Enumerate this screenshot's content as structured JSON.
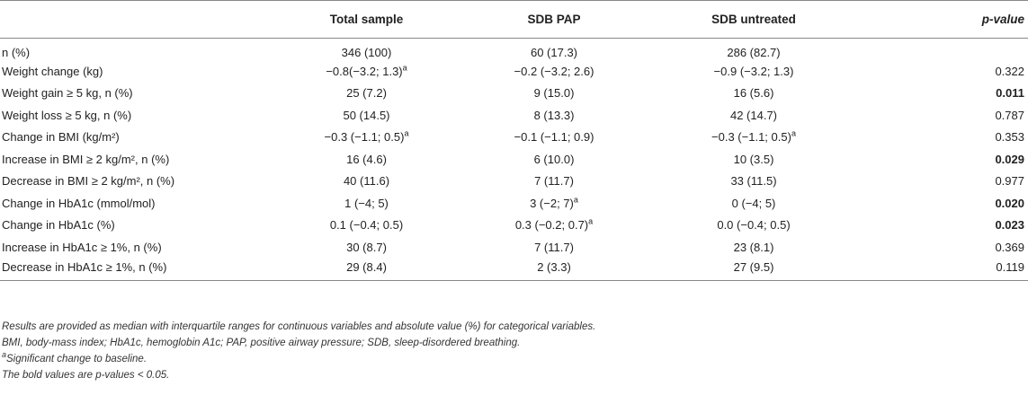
{
  "headers": [
    "",
    "Total sample",
    "SDB PAP",
    "SDB untreated",
    "p-value"
  ],
  "rows": [
    {
      "label": "n (%)",
      "total": "346 (100)",
      "pap": "60 (17.3)",
      "untreated": "286 (82.7)",
      "p": "",
      "p_bold": false
    },
    {
      "label": "Weight change (kg)",
      "total": "−0.8(−3.2; 1.3)",
      "total_sup": "a",
      "pap": "−0.2 (−3.2; 2.6)",
      "untreated": "−0.9 (−3.2; 1.3)",
      "p": "0.322",
      "p_bold": false
    },
    {
      "label": "Weight gain ≥ 5 kg, n (%)",
      "total": "25 (7.2)",
      "pap": "9 (15.0)",
      "untreated": "16 (5.6)",
      "p": "0.011",
      "p_bold": true
    },
    {
      "label": "Weight loss ≥ 5 kg, n (%)",
      "total": "50 (14.5)",
      "pap": "8 (13.3)",
      "untreated": "42 (14.7)",
      "p": "0.787",
      "p_bold": false
    },
    {
      "label": "Change in BMI (kg/m²)",
      "total": "−0.3 (−1.1; 0.5)",
      "total_sup": "a",
      "pap": "−0.1 (−1.1; 0.9)",
      "untreated": "−0.3 (−1.1; 0.5)",
      "untreated_sup": "a",
      "p": "0.353",
      "p_bold": false
    },
    {
      "label": "Increase in BMI ≥ 2 kg/m², n (%)",
      "total": "16 (4.6)",
      "pap": "6 (10.0)",
      "untreated": "10 (3.5)",
      "p": "0.029",
      "p_bold": true
    },
    {
      "label": "Decrease in BMI ≥ 2 kg/m², n (%)",
      "total": "40 (11.6)",
      "pap": "7 (11.7)",
      "untreated": "33 (11.5)",
      "p": "0.977",
      "p_bold": false
    },
    {
      "label": "Change in HbA1c (mmol/mol)",
      "total": "1 (−4; 5)",
      "pap": "3 (−2; 7)",
      "pap_sup": "a",
      "untreated": "0 (−4; 5)",
      "p": "0.020",
      "p_bold": true
    },
    {
      "label": "Change in HbA1c (%)",
      "total": "0.1 (−0.4; 0.5)",
      "pap": "0.3 (−0.2; 0.7)",
      "pap_sup": "a",
      "untreated": "0.0 (−0.4; 0.5)",
      "p": "0.023",
      "p_bold": true
    },
    {
      "label": "Increase in HbA1c ≥ 1%, n (%)",
      "total": "30 (8.7)",
      "pap": "7 (11.7)",
      "untreated": "23 (8.1)",
      "p": "0.369",
      "p_bold": false
    },
    {
      "label": "Decrease in HbA1c ≥ 1%, n (%)",
      "total": "29 (8.4)",
      "pap": "2 (3.3)",
      "untreated": "27 (9.5)",
      "p": "0.119",
      "p_bold": false
    }
  ],
  "notes": {
    "line1": "Results are provided as median with interquartile ranges for continuous variables and absolute value (%) for categorical variables.",
    "line2": "BMI, body-mass index; HbA1c, hemoglobin A1c; PAP, positive airway pressure; SDB, sleep-disordered breathing.",
    "line3_sup": "a",
    "line3": "Significant change to baseline.",
    "line4": "The bold values are p-values < 0.05."
  }
}
